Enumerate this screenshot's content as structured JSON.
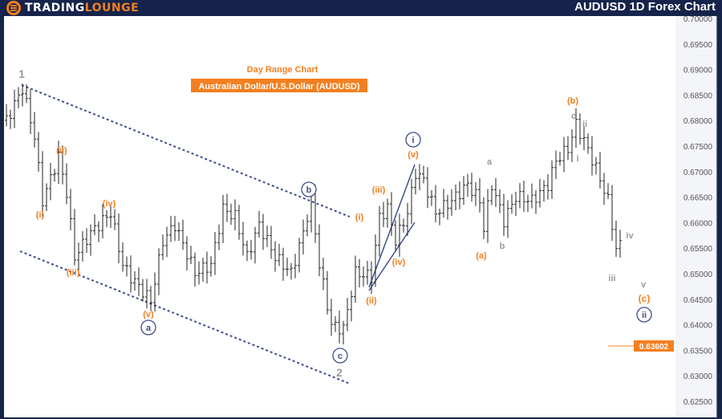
{
  "header": {
    "logo_text_a": "TRADING",
    "logo_text_b": "LOUNGE",
    "title": "AUDUSD 1D Forex Chart"
  },
  "chart_data": {
    "type": "candlestick-bar",
    "title": "Day Range Chart",
    "subtitle": "Australian Dollar/U.S.Dollar (AUDUSD)",
    "ylim": [
      0.625,
      0.7
    ],
    "y_ticks": [
      "0.70000",
      "0.69500",
      "0.69000",
      "0.68500",
      "0.68000",
      "0.67500",
      "0.67000",
      "0.66500",
      "0.66000",
      "0.65500",
      "0.65000",
      "0.64500",
      "0.64000",
      "0.63500",
      "0.63000",
      "0.62500"
    ],
    "current_price": "0.63602",
    "price_path": [
      [
        1,
        0.68006
      ],
      [
        5,
        0.68632
      ],
      [
        8,
        0.67689
      ],
      [
        10,
        0.66432
      ],
      [
        14,
        0.67296
      ],
      [
        16,
        0.66589
      ],
      [
        18,
        0.65331
      ],
      [
        22,
        0.65803
      ],
      [
        27,
        0.66196
      ],
      [
        30,
        0.65174
      ],
      [
        32,
        0.64938
      ],
      [
        37,
        0.64467
      ],
      [
        40,
        0.65646
      ],
      [
        43,
        0.6596
      ],
      [
        48,
        0.65017
      ],
      [
        52,
        0.65174
      ],
      [
        55,
        0.66274
      ],
      [
        58,
        0.66117
      ],
      [
        61,
        0.65331
      ],
      [
        64,
        0.6596
      ],
      [
        68,
        0.65331
      ],
      [
        72,
        0.65017
      ],
      [
        75,
        0.65803
      ],
      [
        77,
        0.66463
      ],
      [
        79,
        0.65174
      ],
      [
        82,
        0.63995
      ],
      [
        85,
        0.63916
      ],
      [
        88,
        0.65017
      ],
      [
        92,
        0.64938
      ],
      [
        94,
        0.66117
      ],
      [
        96,
        0.66274
      ],
      [
        98,
        0.65646
      ],
      [
        101,
        0.66196
      ],
      [
        103,
        0.66982
      ],
      [
        105,
        0.66825
      ],
      [
        108,
        0.66196
      ],
      [
        112,
        0.66432
      ],
      [
        116,
        0.66746
      ],
      [
        119,
        0.66432
      ],
      [
        120,
        0.65882
      ],
      [
        122,
        0.66746
      ],
      [
        125,
        0.66039
      ],
      [
        128,
        0.6651
      ],
      [
        132,
        0.66432
      ],
      [
        136,
        0.66746
      ],
      [
        138,
        0.67218
      ],
      [
        141,
        0.67453
      ],
      [
        143,
        0.67925
      ],
      [
        145,
        0.6761
      ],
      [
        148,
        0.6706
      ],
      [
        151,
        0.66432
      ],
      [
        153,
        0.65488
      ],
      [
        154,
        0.65567
      ]
    ],
    "wave_labels": [
      {
        "text": "1",
        "color": "#999999"
      },
      {
        "text": "(i)",
        "color": "#f47f20"
      },
      {
        "text": "(ii)",
        "color": "#f47f20"
      },
      {
        "text": "(iii)",
        "color": "#f47f20"
      },
      {
        "text": "(iv)",
        "color": "#f47f20"
      },
      {
        "text": "(v)",
        "color": "#f47f20"
      },
      {
        "text": "a",
        "color": "#3d4f8a"
      },
      {
        "text": "b",
        "color": "#3d4f8a"
      },
      {
        "text": "c",
        "color": "#3d4f8a"
      },
      {
        "text": "2",
        "color": "#999999"
      },
      {
        "text": "(i)",
        "color": "#f47f20"
      },
      {
        "text": "(ii)",
        "color": "#f47f20"
      },
      {
        "text": "(iii)",
        "color": "#f47f20"
      },
      {
        "text": "(iv)",
        "color": "#f47f20"
      },
      {
        "text": "(v)",
        "color": "#f47f20"
      },
      {
        "text": "i",
        "color": "#3d4f8a"
      },
      {
        "text": "a",
        "color": "#999999"
      },
      {
        "text": "(a)",
        "color": "#f47f20"
      },
      {
        "text": "b",
        "color": "#999999"
      },
      {
        "text": "(b)",
        "color": "#f47f20"
      },
      {
        "text": "c",
        "color": "#999999"
      },
      {
        "text": "i",
        "color": "#999999"
      },
      {
        "text": "ii",
        "color": "#999999"
      },
      {
        "text": "iii",
        "color": "#999999"
      },
      {
        "text": "iv",
        "color": "#999999"
      },
      {
        "text": "v",
        "color": "#999999"
      },
      {
        "text": "(c)",
        "color": "#f47f20"
      },
      {
        "text": "ii",
        "color": "#3d4f8a"
      }
    ],
    "colors": {
      "accent": "#f47f20",
      "channel": "#3d4f8a",
      "bars": "#222222"
    }
  }
}
